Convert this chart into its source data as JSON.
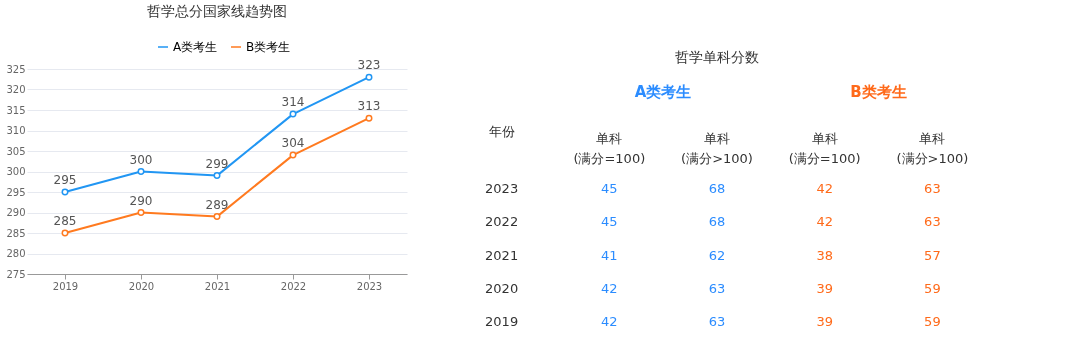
{
  "chart_data": [
    {
      "type": "line",
      "title": "哲学总分国家线趋势图",
      "categories": [
        "2019",
        "2020",
        "2021",
        "2022",
        "2023"
      ],
      "series": [
        {
          "name": "A类考生",
          "color": "#2196f3",
          "values": [
            295,
            300,
            299,
            314,
            323
          ]
        },
        {
          "name": "B类考生",
          "color": "#ff7a1f",
          "values": [
            285,
            290,
            289,
            304,
            313
          ]
        }
      ],
      "ylim": [
        275,
        325
      ],
      "yticks": [
        275,
        280,
        285,
        290,
        295,
        300,
        305,
        310,
        315,
        320,
        325
      ],
      "grid": "y",
      "legend": "top",
      "marker": "circle",
      "line_style": "solid",
      "data_labels": true
    },
    {
      "type": "heatmap",
      "title": "哲学单科分数",
      "ylabel": "年份",
      "categories": [
        "单科\n(满分=100)",
        "单科\n(满分>100)",
        "单科\n(满分=100)",
        "单科\n(满分>100)"
      ],
      "y_categories": [
        "2023",
        "2022",
        "2021",
        "2020",
        "2019"
      ],
      "cells": [
        [
          45,
          68,
          42,
          63
        ],
        [
          45,
          68,
          42,
          63
        ],
        [
          41,
          62,
          38,
          57
        ],
        [
          42,
          63,
          39,
          59
        ],
        [
          42,
          63,
          39,
          59
        ]
      ],
      "colors": [
        "#2b8cff",
        "#2b8cff",
        "#ff6a1a",
        "#ff6a1a"
      ],
      "data_labels": true,
      "annotations": [
        "A类考生",
        "B类考生"
      ]
    }
  ]
}
